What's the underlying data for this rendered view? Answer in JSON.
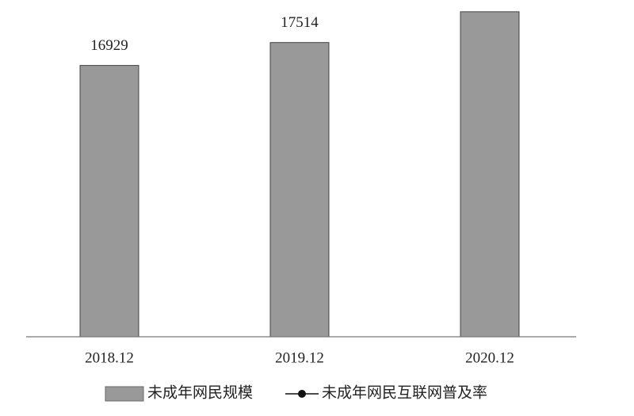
{
  "chart_data": {
    "type": "bar",
    "categories": [
      "2018.12",
      "2019.12",
      "2020.12"
    ],
    "series": [
      {
        "name": "未成年网民规模",
        "color": "#999999",
        "values": [
          16929,
          17514,
          18300
        ],
        "value_labels": [
          "16929",
          "17514",
          null
        ]
      },
      {
        "name": "未成年网民互联网普及率",
        "color": "#111111",
        "values": [
          null,
          null,
          null
        ]
      }
    ],
    "ylim": [
      10000,
      18600
    ]
  }
}
